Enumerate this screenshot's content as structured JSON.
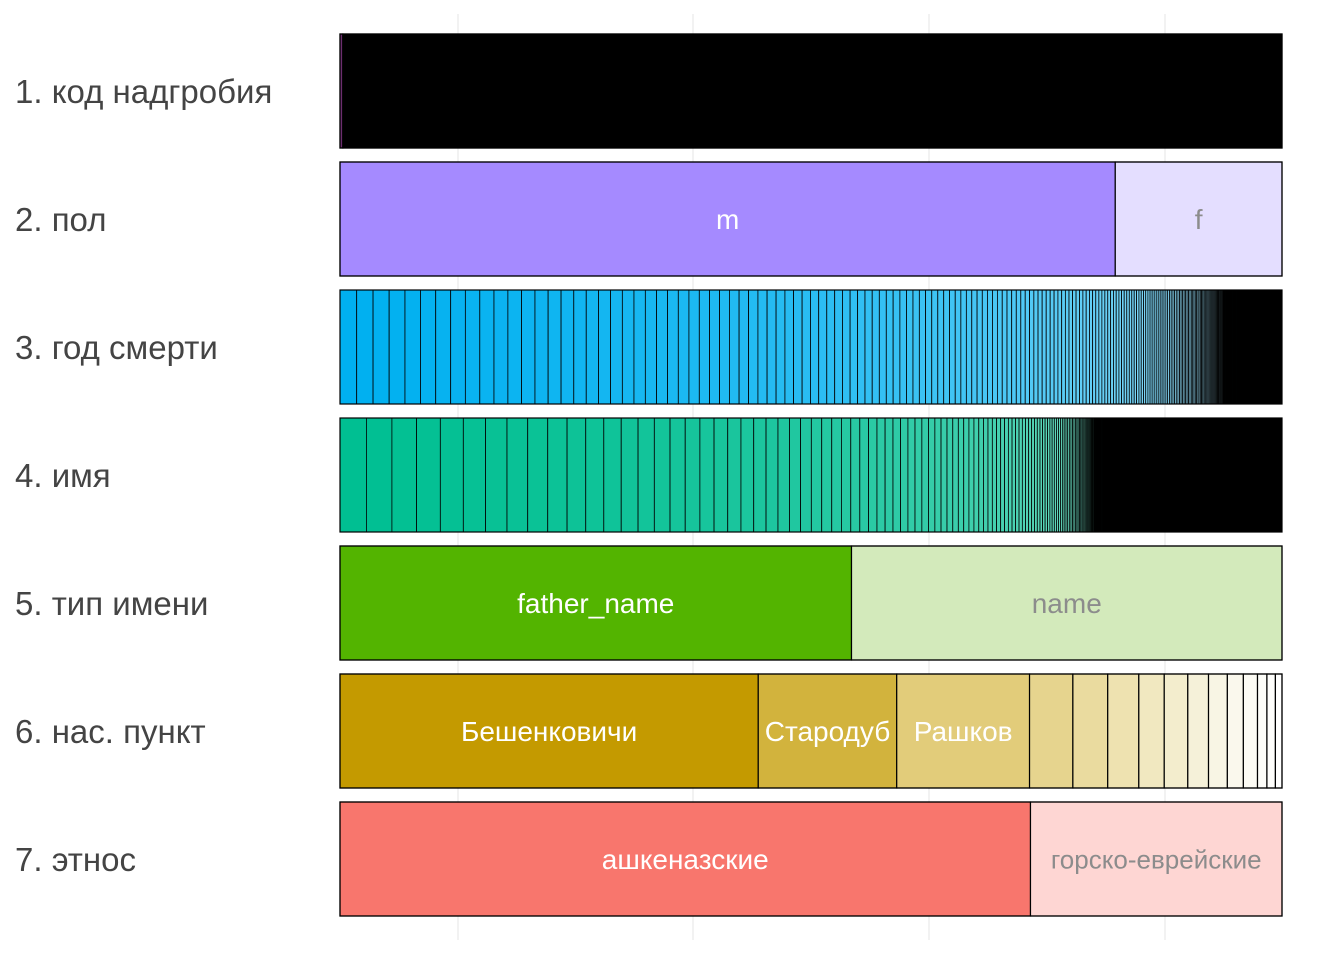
{
  "chart_data": {
    "type": "bar",
    "subtype": "stacked-proportion-strips",
    "title": "",
    "xlabel": "",
    "ylabel": "",
    "xlim": [
      0,
      1
    ],
    "grid": true,
    "legend": "none",
    "rows": [
      {
        "label": "1. код надгробия",
        "base_color": "#000000",
        "segments": [
          {
            "name": "",
            "value": 0.003,
            "color": "#6b2e6e"
          },
          {
            "name": "",
            "value": 0.997,
            "color": "#000000"
          }
        ]
      },
      {
        "label": "2. пол",
        "base_color": "#a58aff",
        "segments": [
          {
            "name": "m",
            "value": 0.823,
            "color": "#a58aff",
            "label_color": "#ffffff"
          },
          {
            "name": "f",
            "value": 0.177,
            "color": "#e4deff",
            "label_color": "#8c8c8c"
          }
        ]
      },
      {
        "label": "3. год смерти",
        "base_color": "#00b0f0",
        "fade_to": "#ffffff",
        "tail_color": "#000000",
        "segment_count": 200,
        "tail_fraction": 0.042,
        "decay": 0.982
      },
      {
        "label": "4. имя",
        "base_color": "#00bf92",
        "fade_to": "#ffffff",
        "tail_color": "#000000",
        "segment_count": 170,
        "tail_fraction": 0.178,
        "decay": 0.966
      },
      {
        "label": "5. тип имени",
        "base_color": "#53b400",
        "segments": [
          {
            "name": "father_name",
            "value": 0.543,
            "color": "#53b400",
            "label_color": "#ffffff"
          },
          {
            "name": "name",
            "value": 0.457,
            "color": "#d3eabb",
            "label_color": "#8c8c8c"
          }
        ]
      },
      {
        "label": "6. нас. пункт",
        "base_color": "#c49a00",
        "segments": [
          {
            "name": "Бешенковичи",
            "value": 0.444,
            "color": "#c49a00",
            "label_color": "#ffffff"
          },
          {
            "name": "Стародуб",
            "value": 0.147,
            "color": "#d2b33d",
            "label_color": "#ffffff"
          },
          {
            "name": "Рашков",
            "value": 0.141,
            "color": "#e2cc7a",
            "label_color": "#ffffff"
          },
          {
            "name": "",
            "value": 0.046,
            "color": "#e6d48e"
          },
          {
            "name": "",
            "value": 0.037,
            "color": "#eadb9f"
          },
          {
            "name": "",
            "value": 0.033,
            "color": "#eee2b0"
          },
          {
            "name": "",
            "value": 0.027,
            "color": "#f1e8c0"
          },
          {
            "name": "",
            "value": 0.025,
            "color": "#f3edcd"
          },
          {
            "name": "",
            "value": 0.022,
            "color": "#f5f1d9"
          },
          {
            "name": "",
            "value": 0.02,
            "color": "#f8f5e4"
          },
          {
            "name": "",
            "value": 0.017,
            "color": "#faf8ed"
          },
          {
            "name": "",
            "value": 0.015,
            "color": "#fcfbf4"
          },
          {
            "name": "",
            "value": 0.01,
            "color": "#fdfdf9"
          },
          {
            "name": "",
            "value": 0.009,
            "color": "#fefefc"
          },
          {
            "name": "",
            "value": 0.007,
            "color": "#ffffff"
          }
        ]
      },
      {
        "label": "7. этнос",
        "base_color": "#f8766d",
        "segments": [
          {
            "name": "ашкеназские",
            "value": 0.733,
            "color": "#f8766d",
            "label_color": "#ffffff"
          },
          {
            "name": "горско-еврейские",
            "value": 0.267,
            "color": "#fed6d3",
            "label_color": "#8c8c8c"
          }
        ]
      }
    ]
  }
}
